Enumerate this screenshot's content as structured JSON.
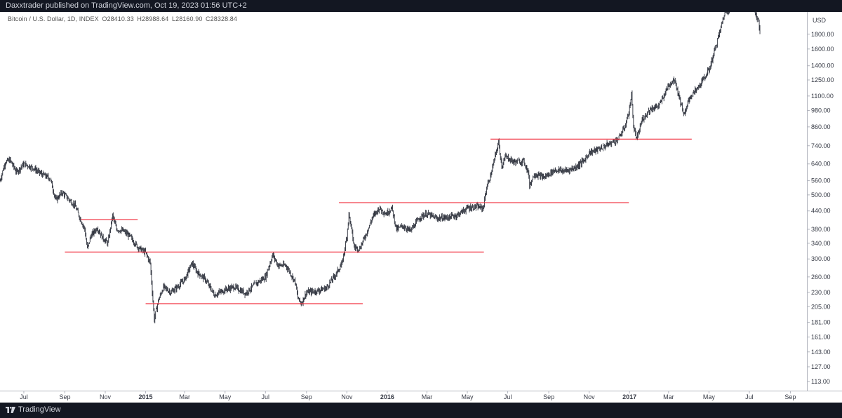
{
  "header": {
    "publish_line": "Daxxtrader published on TradingView.com, Oct 19, 2023 01:56 UTC+2"
  },
  "legend": {
    "symbol": "Bitcoin / U.S. Dollar, 1D, INDEX",
    "open": "O28410.33",
    "high": "H28988.64",
    "low": "L28160.90",
    "close": "C28328.84"
  },
  "footer": {
    "brand": "TradingView",
    "logo_icon": "tradingview-logo-icon"
  },
  "colors": {
    "background": "#ffffff",
    "candles": "#2a2e39",
    "levels": "#f23645",
    "frame": "#131722",
    "axis_text": "#363a45"
  },
  "chart_data": {
    "type": "candlestick",
    "title": "",
    "currency_label": "USD",
    "y_scale": "log",
    "ylim": [
      105,
      2150
    ],
    "xlim": [
      "2014-05-26",
      "2017-09-26"
    ],
    "x_ticks": [
      {
        "date": "2014-07-01",
        "label": "Jul"
      },
      {
        "date": "2014-09-01",
        "label": "Sep"
      },
      {
        "date": "2014-11-01",
        "label": "Nov"
      },
      {
        "date": "2015-01-01",
        "label": "2015"
      },
      {
        "date": "2015-03-01",
        "label": "Mar"
      },
      {
        "date": "2015-05-01",
        "label": "May"
      },
      {
        "date": "2015-07-01",
        "label": "Jul"
      },
      {
        "date": "2015-09-01",
        "label": "Sep"
      },
      {
        "date": "2015-11-01",
        "label": "Nov"
      },
      {
        "date": "2016-01-01",
        "label": "2016"
      },
      {
        "date": "2016-03-01",
        "label": "Mar"
      },
      {
        "date": "2016-05-01",
        "label": "May"
      },
      {
        "date": "2016-07-01",
        "label": "Jul"
      },
      {
        "date": "2016-09-01",
        "label": "Sep"
      },
      {
        "date": "2016-11-01",
        "label": "Nov"
      },
      {
        "date": "2017-01-01",
        "label": "2017"
      },
      {
        "date": "2017-03-01",
        "label": "Mar"
      },
      {
        "date": "2017-05-01",
        "label": "May"
      },
      {
        "date": "2017-07-01",
        "label": "Jul"
      },
      {
        "date": "2017-09-01",
        "label": "Sep"
      }
    ],
    "y_ticks": [
      {
        "value": 1800,
        "label": "1800.00"
      },
      {
        "value": 1600,
        "label": "1600.00"
      },
      {
        "value": 1400,
        "label": "1400.00"
      },
      {
        "value": 1250,
        "label": "1250.00"
      },
      {
        "value": 1100,
        "label": "1100.00"
      },
      {
        "value": 980,
        "label": "980.00"
      },
      {
        "value": 860,
        "label": "860.00"
      },
      {
        "value": 740,
        "label": "740.00"
      },
      {
        "value": 640,
        "label": "640.00"
      },
      {
        "value": 560,
        "label": "560.00"
      },
      {
        "value": 500,
        "label": "500.00"
      },
      {
        "value": 440,
        "label": "440.00"
      },
      {
        "value": 380,
        "label": "380.00"
      },
      {
        "value": 340,
        "label": "340.00"
      },
      {
        "value": 300,
        "label": "300.00"
      },
      {
        "value": 260,
        "label": "260.00"
      },
      {
        "value": 230,
        "label": "230.00"
      },
      {
        "value": 205,
        "label": "205.00"
      },
      {
        "value": 181,
        "label": "181.00"
      },
      {
        "value": 161,
        "label": "161.00"
      },
      {
        "value": 143,
        "label": "143.00"
      },
      {
        "value": 127,
        "label": "127.00"
      },
      {
        "value": 113,
        "label": "113.00"
      }
    ],
    "price_path": [
      [
        "2014-05-26",
        560
      ],
      [
        "2014-06-03",
        650
      ],
      [
        "2014-06-10",
        660
      ],
      [
        "2014-06-20",
        600
      ],
      [
        "2014-07-01",
        640
      ],
      [
        "2014-07-15",
        620
      ],
      [
        "2014-07-28",
        590
      ],
      [
        "2014-08-10",
        570
      ],
      [
        "2014-08-18",
        480
      ],
      [
        "2014-08-28",
        510
      ],
      [
        "2014-09-08",
        480
      ],
      [
        "2014-09-16",
        460
      ],
      [
        "2014-09-23",
        420
      ],
      [
        "2014-10-01",
        380
      ],
      [
        "2014-10-05",
        325
      ],
      [
        "2014-10-10",
        360
      ],
      [
        "2014-10-20",
        385
      ],
      [
        "2014-10-28",
        355
      ],
      [
        "2014-11-05",
        340
      ],
      [
        "2014-11-12",
        425
      ],
      [
        "2014-11-18",
        380
      ],
      [
        "2014-11-28",
        375
      ],
      [
        "2014-12-08",
        360
      ],
      [
        "2014-12-20",
        330
      ],
      [
        "2015-01-01",
        315
      ],
      [
        "2015-01-08",
        290
      ],
      [
        "2015-01-14",
        185
      ],
      [
        "2015-01-20",
        215
      ],
      [
        "2015-01-28",
        240
      ],
      [
        "2015-02-08",
        230
      ],
      [
        "2015-02-18",
        240
      ],
      [
        "2015-03-01",
        255
      ],
      [
        "2015-03-12",
        290
      ],
      [
        "2015-03-20",
        270
      ],
      [
        "2015-04-01",
        255
      ],
      [
        "2015-04-15",
        225
      ],
      [
        "2015-05-01",
        235
      ],
      [
        "2015-05-15",
        240
      ],
      [
        "2015-06-01",
        228
      ],
      [
        "2015-06-15",
        245
      ],
      [
        "2015-07-01",
        260
      ],
      [
        "2015-07-12",
        310
      ],
      [
        "2015-07-20",
        285
      ],
      [
        "2015-08-01",
        285
      ],
      [
        "2015-08-15",
        250
      ],
      [
        "2015-08-19",
        220
      ],
      [
        "2015-08-24",
        210
      ],
      [
        "2015-09-01",
        230
      ],
      [
        "2015-09-15",
        232
      ],
      [
        "2015-10-01",
        238
      ],
      [
        "2015-10-15",
        265
      ],
      [
        "2015-10-25",
        290
      ],
      [
        "2015-11-01",
        360
      ],
      [
        "2015-11-04",
        430
      ],
      [
        "2015-11-08",
        380
      ],
      [
        "2015-11-12",
        330
      ],
      [
        "2015-11-20",
        325
      ],
      [
        "2015-12-01",
        370
      ],
      [
        "2015-12-10",
        420
      ],
      [
        "2015-12-20",
        450
      ],
      [
        "2015-12-30",
        430
      ],
      [
        "2016-01-08",
        450
      ],
      [
        "2016-01-15",
        380
      ],
      [
        "2016-01-25",
        390
      ],
      [
        "2016-02-05",
        375
      ],
      [
        "2016-02-20",
        420
      ],
      [
        "2016-03-01",
        430
      ],
      [
        "2016-03-15",
        415
      ],
      [
        "2016-04-01",
        418
      ],
      [
        "2016-04-15",
        425
      ],
      [
        "2016-05-01",
        450
      ],
      [
        "2016-05-15",
        455
      ],
      [
        "2016-05-25",
        450
      ],
      [
        "2016-05-30",
        530
      ],
      [
        "2016-06-05",
        580
      ],
      [
        "2016-06-12",
        680
      ],
      [
        "2016-06-17",
        760
      ],
      [
        "2016-06-22",
        630
      ],
      [
        "2016-06-28",
        680
      ],
      [
        "2016-07-10",
        650
      ],
      [
        "2016-07-25",
        655
      ],
      [
        "2016-08-01",
        600
      ],
      [
        "2016-08-03",
        540
      ],
      [
        "2016-08-10",
        590
      ],
      [
        "2016-08-25",
        575
      ],
      [
        "2016-09-10",
        610
      ],
      [
        "2016-09-25",
        605
      ],
      [
        "2016-10-10",
        620
      ],
      [
        "2016-10-25",
        660
      ],
      [
        "2016-11-01",
        700
      ],
      [
        "2016-11-15",
        720
      ],
      [
        "2016-12-01",
        750
      ],
      [
        "2016-12-15",
        780
      ],
      [
        "2016-12-25",
        860
      ],
      [
        "2017-01-01",
        990
      ],
      [
        "2017-01-04",
        1120
      ],
      [
        "2017-01-07",
        860
      ],
      [
        "2017-01-12",
        780
      ],
      [
        "2017-01-20",
        910
      ],
      [
        "2017-02-01",
        990
      ],
      [
        "2017-02-15",
        1020
      ],
      [
        "2017-03-01",
        1200
      ],
      [
        "2017-03-10",
        1260
      ],
      [
        "2017-03-17",
        1090
      ],
      [
        "2017-03-25",
        940
      ],
      [
        "2017-04-01",
        1080
      ],
      [
        "2017-04-15",
        1180
      ],
      [
        "2017-05-01",
        1350
      ],
      [
        "2017-05-15",
        1750
      ],
      [
        "2017-05-25",
        2150
      ],
      [
        "2017-06-01",
        2200
      ],
      [
        "2017-06-15",
        2300
      ],
      [
        "2017-07-01",
        2400
      ],
      [
        "2017-07-15",
        2000
      ],
      [
        "2017-07-17",
        1850
      ]
    ],
    "horizontal_levels": [
      {
        "price": 410,
        "from": "2014-09-25",
        "to": "2014-12-20"
      },
      {
        "price": 317,
        "from": "2014-09-01",
        "to": "2016-05-26"
      },
      {
        "price": 210,
        "from": "2015-01-01",
        "to": "2015-11-25"
      },
      {
        "price": 470,
        "from": "2015-10-20",
        "to": "2016-12-31"
      },
      {
        "price": 780,
        "from": "2016-06-05",
        "to": "2017-04-05"
      }
    ]
  }
}
